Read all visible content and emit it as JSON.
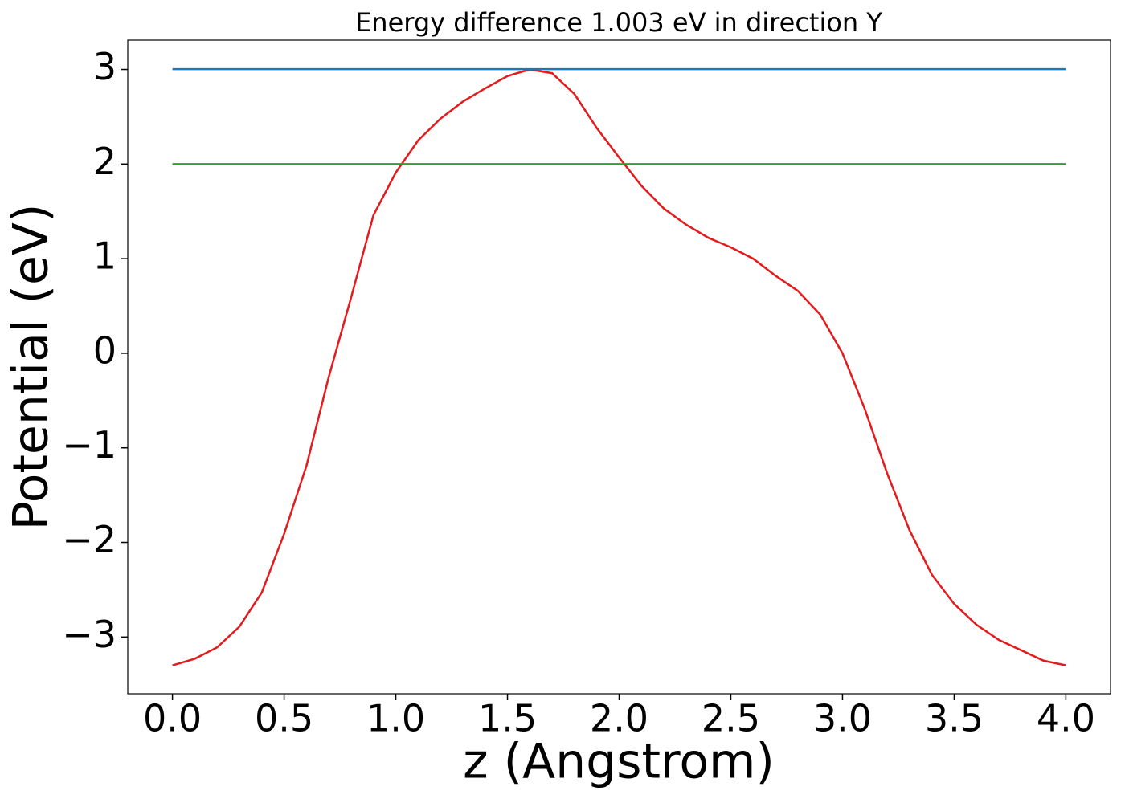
{
  "chart_data": {
    "type": "line",
    "title": "Energy difference 1.003 eV in direction Y",
    "x_label": "z (Angstrom)",
    "y_label": "Potential (eV)",
    "xlim": [
      -0.2,
      4.2
    ],
    "ylim": [
      -3.6,
      3.31
    ],
    "xticks": [
      {
        "value": 0,
        "label": "0.0"
      },
      0.5,
      {
        "value": 1,
        "label": "1.0"
      },
      1.5,
      {
        "value": 2,
        "label": "2.0"
      },
      2.5,
      {
        "value": 3,
        "label": "3.0"
      },
      3.5,
      {
        "value": 4,
        "label": "4.0"
      }
    ],
    "yticks": [
      {
        "value": -3,
        "label": "−3"
      },
      {
        "value": -2,
        "label": "−2"
      },
      {
        "value": -1,
        "label": "−1"
      },
      0,
      1,
      2,
      3
    ],
    "series": [
      {
        "color": "#e41a1c",
        "x": [
          0,
          0.1,
          0.2,
          0.3,
          0.4,
          0.5,
          0.6,
          0.7,
          0.8,
          0.9,
          1.0,
          1.1,
          1.2,
          1.3,
          1.4,
          1.5,
          1.6,
          1.7,
          1.8,
          1.9,
          2.0,
          2.1,
          2.2,
          2.3,
          2.4,
          2.5,
          2.6,
          2.7,
          2.8,
          2.9,
          3.0,
          3.1,
          3.2,
          3.3,
          3.4,
          3.5,
          3.6,
          3.7,
          3.8,
          3.9,
          4.0
        ],
        "values": [
          -3.3,
          -3.23,
          -3.11,
          -2.89,
          -2.53,
          -1.91,
          -1.19,
          -0.25,
          0.59,
          1.46,
          1.91,
          2.25,
          2.48,
          2.66,
          2.8,
          2.93,
          3.0,
          2.96,
          2.74,
          2.38,
          2.07,
          1.77,
          1.53,
          1.36,
          1.22,
          1.12,
          1.0,
          0.82,
          0.66,
          0.41,
          0.0,
          -0.59,
          -1.27,
          -1.87,
          -2.34,
          -2.65,
          -2.87,
          -3.03,
          -3.14,
          -3.25,
          -3.3
        ]
      },
      {
        "color": "#1f77b4",
        "x": [
          0,
          4
        ],
        "values": [
          3.003,
          3.003
        ]
      },
      {
        "color": "#2ca02c",
        "x": [
          0,
          4
        ],
        "values": [
          2.0,
          2.0
        ]
      }
    ]
  }
}
